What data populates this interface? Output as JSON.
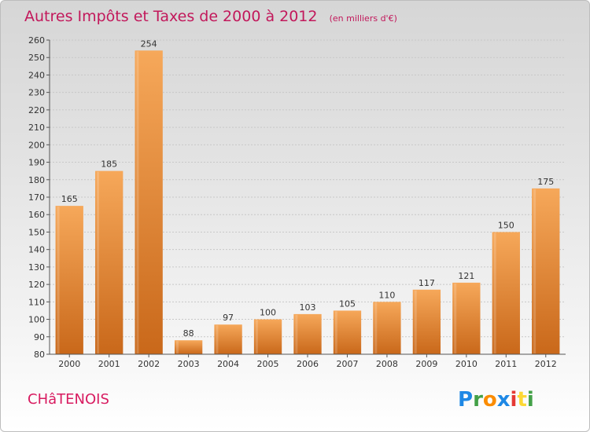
{
  "chart_data": {
    "type": "bar",
    "title": "Autres Impôts et Taxes de 2000 à 2012",
    "subtitle": "(en milliers d'€)",
    "categories": [
      "2000",
      "2001",
      "2002",
      "2003",
      "2004",
      "2005",
      "2006",
      "2007",
      "2008",
      "2009",
      "2010",
      "2011",
      "2012"
    ],
    "values": [
      165,
      185,
      254,
      88,
      97,
      100,
      103,
      105,
      110,
      117,
      121,
      150,
      175
    ],
    "ylim": [
      80,
      260
    ],
    "yticks": [
      80,
      90,
      100,
      110,
      120,
      130,
      140,
      150,
      160,
      170,
      180,
      190,
      200,
      210,
      220,
      230,
      240,
      250,
      260
    ],
    "grid": true,
    "bar_color_top": "#f6a85a",
    "bar_color_bottom": "#c9681a"
  },
  "commune": "CHâTENOIS",
  "logo": {
    "letters": [
      "P",
      "r",
      "o",
      "x",
      "i",
      "t",
      "i"
    ],
    "colors": [
      "#1e88e5",
      "#43a047",
      "#fb8c00",
      "#1e88e5",
      "#e53935",
      "#fdd835",
      "#43a047"
    ]
  }
}
